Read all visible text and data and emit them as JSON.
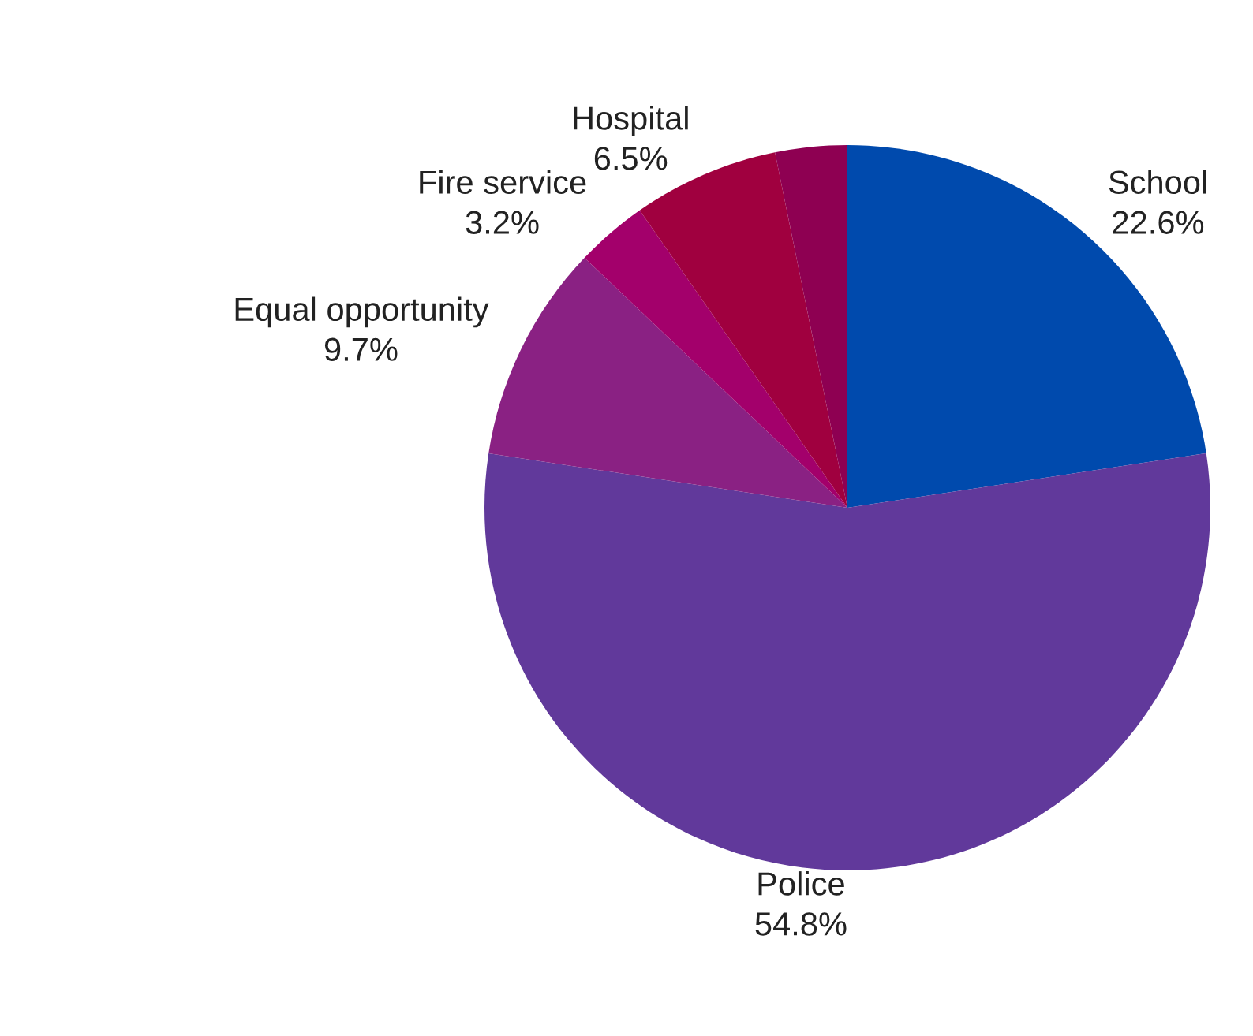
{
  "chart_data": {
    "type": "pie",
    "categories": [
      "School",
      "Police",
      "Equal opportunity",
      "Fire service",
      "Hospital",
      null
    ],
    "values": [
      22.6,
      54.8,
      9.7,
      3.2,
      6.5,
      3.2
    ],
    "value_labels": [
      "22.6%",
      "54.8%",
      "9.7%",
      "3.2%",
      "6.5%",
      null
    ],
    "colors": [
      "#004aad",
      "#61399b",
      "#8a2183",
      "#a3006b",
      "#a0003f",
      "#8e0052"
    ]
  }
}
